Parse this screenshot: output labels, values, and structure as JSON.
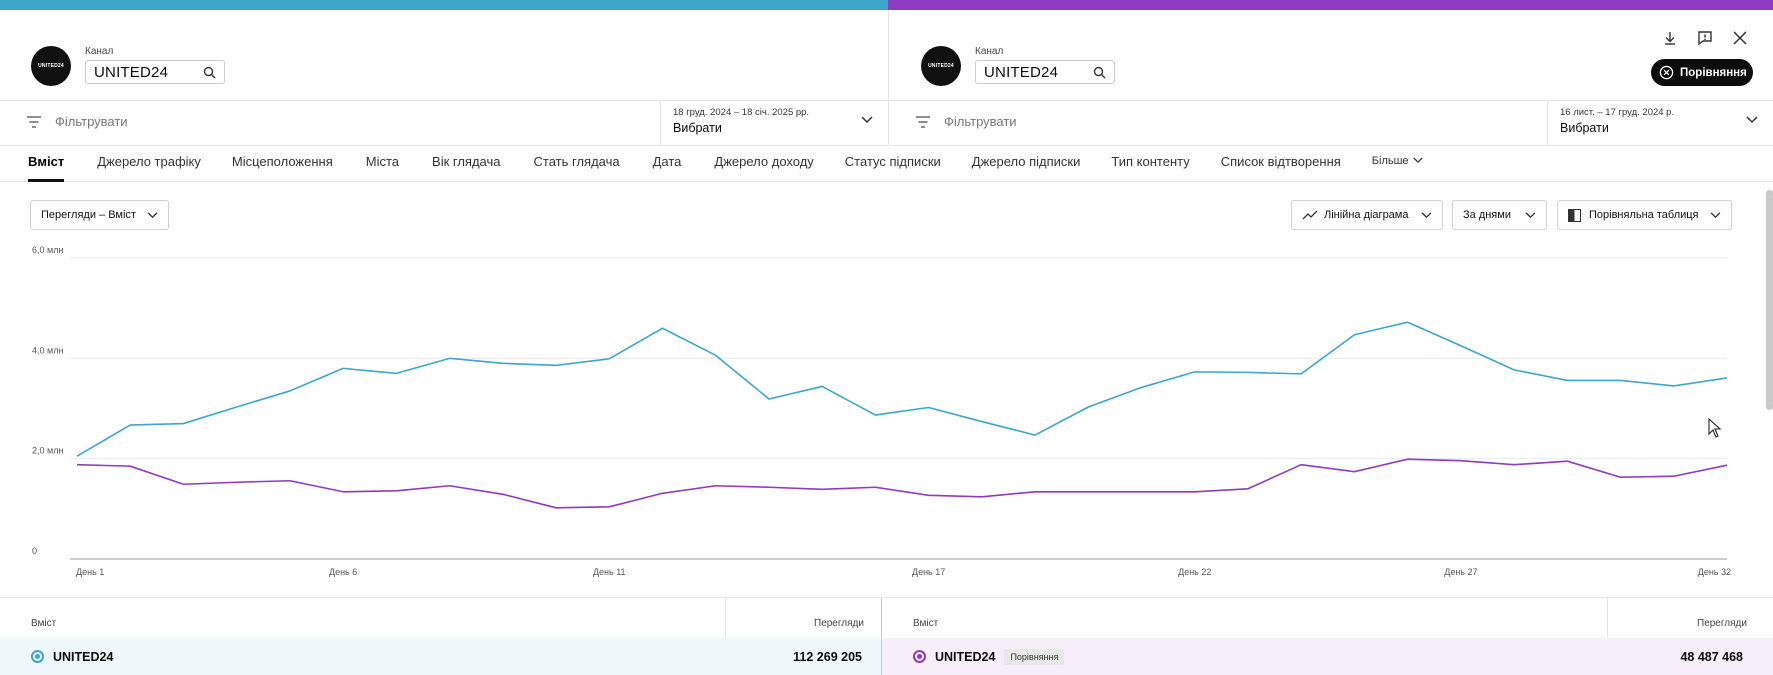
{
  "left": {
    "channel_label": "Канал",
    "channel_name": "UNITED24",
    "avatar_text": "UNITED24",
    "filter_placeholder": "Фільтрувати",
    "date_range": "18 груд. 2024 – 18 січ. 2025 рр.",
    "date_select": "Вибрати",
    "color": "#3ea6c8"
  },
  "right": {
    "channel_label": "Канал",
    "channel_name": "UNITED24",
    "avatar_text": "UNITED24",
    "filter_placeholder": "Фільтрувати",
    "date_range": "16 лист. – 17 груд. 2024 р.",
    "date_select": "Вибрати",
    "compare_button": "Порівняння",
    "color": "#8e3bc2"
  },
  "tabs": [
    "Вміст",
    "Джерело трафіку",
    "Місцеположення",
    "Міста",
    "Вік глядача",
    "Стать глядача",
    "Дата",
    "Джерело доходу",
    "Статус підписки",
    "Джерело підписки",
    "Тип контенту",
    "Список відтворення",
    "Більше"
  ],
  "toolbar": {
    "metric": "Перегляди – Вміст",
    "chart_type": "Лінійна діаграма",
    "granularity": "За днями",
    "compare_table": "Порівняльна таблиця"
  },
  "chart_data": {
    "type": "line",
    "ylim": [
      0,
      6000000
    ],
    "yticks": [
      "0",
      "2,0 млн",
      "4,0 млн",
      "6,0 млн"
    ],
    "xticks": [
      "День 1",
      "День 6",
      "День 11",
      "День 17",
      "День 22",
      "День 27",
      "День 32"
    ],
    "x": [
      1,
      2,
      3,
      4,
      5,
      6,
      7,
      8,
      9,
      10,
      11,
      12,
      13,
      14,
      15,
      16,
      17,
      18,
      19,
      20,
      21,
      22,
      23,
      24,
      25,
      26,
      27,
      28,
      29,
      30,
      31,
      32
    ],
    "series": [
      {
        "color": "#3ea6c8",
        "values": [
          2.05,
          2.67,
          2.7,
          3.03,
          3.35,
          3.8,
          3.7,
          4.0,
          3.9,
          3.86,
          3.99,
          4.6,
          4.06,
          3.19,
          3.44,
          2.87,
          3.02,
          2.74,
          2.47,
          3.03,
          3.42,
          3.73,
          3.72,
          3.69,
          4.47,
          4.72,
          4.25,
          3.77,
          3.56,
          3.56,
          3.45,
          3.61
        ]
      },
      {
        "color": "#8e3bc2",
        "values": [
          1.88,
          1.85,
          1.49,
          1.53,
          1.56,
          1.34,
          1.36,
          1.46,
          1.29,
          1.02,
          1.04,
          1.31,
          1.46,
          1.43,
          1.39,
          1.43,
          1.27,
          1.24,
          1.34,
          1.34,
          1.34,
          1.34,
          1.4,
          1.88,
          1.74,
          1.99,
          1.96,
          1.88,
          1.95,
          1.63,
          1.65,
          1.87
        ]
      }
    ]
  },
  "table": {
    "left_col_label": "Вміст",
    "left_value_label": "Перегляди",
    "left_row_name": "UNITED24",
    "left_row_value": "112 269 205",
    "right_col_label": "Вміст",
    "right_value_label": "Перегляди",
    "right_row_name": "UNITED24",
    "right_row_pill": "Порівняння",
    "right_row_value": "48 487 468"
  }
}
